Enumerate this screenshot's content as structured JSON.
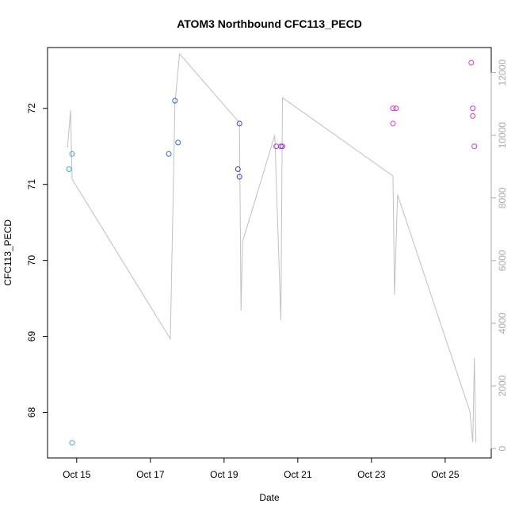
{
  "chart_data": {
    "type": "scatter",
    "title": "ATOM3 Northbound CFC113_PECD",
    "xlabel": "Date",
    "ylabel": "CFC113_PECD",
    "x_ticks": [
      "Oct 15",
      "Oct 17",
      "Oct 19",
      "Oct 21",
      "Oct 23",
      "Oct 25"
    ],
    "xlim": [
      "2016-10-14 05:00",
      "2016-10-26 06:00"
    ],
    "ylim": [
      67.4,
      72.8
    ],
    "y_ticks": [
      68,
      69,
      70,
      71,
      72
    ],
    "grid": false,
    "series": [
      {
        "color": "#3aa6e8",
        "points": [
          {
            "x": "2016-10-14 19:00",
            "y": 71.2
          },
          {
            "x": "2016-10-14 21:00",
            "y": 71.4
          },
          {
            "x": "2016-10-14 21:00",
            "y": 67.6
          }
        ]
      },
      {
        "color": "#2a6fe0",
        "points": [
          {
            "x": "2016-10-17 12:00",
            "y": 71.4
          },
          {
            "x": "2016-10-17 16:00",
            "y": 72.1
          },
          {
            "x": "2016-10-17 18:00",
            "y": 71.55
          }
        ]
      },
      {
        "color": "#4a35e8",
        "points": [
          {
            "x": "2016-10-19 09:00",
            "y": 71.2
          },
          {
            "x": "2016-10-19 10:00",
            "y": 71.1
          },
          {
            "x": "2016-10-19 10:00",
            "y": 71.8
          }
        ]
      },
      {
        "color": "#9b30e8",
        "points": [
          {
            "x": "2016-10-20 10:00",
            "y": 71.5
          },
          {
            "x": "2016-10-20 13:00",
            "y": 71.5
          },
          {
            "x": "2016-10-20 14:00",
            "y": 71.5
          }
        ]
      },
      {
        "color": "#e030e0",
        "points": [
          {
            "x": "2016-10-23 14:00",
            "y": 72.0
          },
          {
            "x": "2016-10-23 16:00",
            "y": 72.0
          },
          {
            "x": "2016-10-23 14:00",
            "y": 71.8
          },
          {
            "x": "2016-10-25 17:00",
            "y": 72.6
          },
          {
            "x": "2016-10-25 18:00",
            "y": 72.0
          },
          {
            "x": "2016-10-25 18:00",
            "y": 71.9
          },
          {
            "x": "2016-10-25 19:00",
            "y": 71.5
          }
        ]
      }
    ],
    "secondary_axis": {
      "side": "right",
      "ylim": [
        -300,
        12800
      ],
      "y_ticks": [
        0,
        2000,
        4000,
        6000,
        8000,
        10000,
        12000
      ],
      "line_color": "#c0c0c0",
      "line": [
        {
          "x": "2016-10-14 18:00",
          "y": 9600
        },
        {
          "x": "2016-10-14 20:00",
          "y": 10800
        },
        {
          "x": "2016-10-14 21:00",
          "y": 8600
        },
        {
          "x": "2016-10-17 13:00",
          "y": 3500
        },
        {
          "x": "2016-10-17 16:00",
          "y": 11000
        },
        {
          "x": "2016-10-17 19:00",
          "y": 12600
        },
        {
          "x": "2016-10-19 10:00",
          "y": 10400
        },
        {
          "x": "2016-10-19 11:00",
          "y": 4400
        },
        {
          "x": "2016-10-19 12:00",
          "y": 6600
        },
        {
          "x": "2016-10-20 09:00",
          "y": 10000
        },
        {
          "x": "2016-10-20 13:00",
          "y": 4100
        },
        {
          "x": "2016-10-20 14:00",
          "y": 11200
        },
        {
          "x": "2016-10-23 14:00",
          "y": 8700
        },
        {
          "x": "2016-10-23 15:00",
          "y": 4900
        },
        {
          "x": "2016-10-23 17:00",
          "y": 8100
        },
        {
          "x": "2016-10-25 16:00",
          "y": 1200
        },
        {
          "x": "2016-10-25 18:00",
          "y": 200
        },
        {
          "x": "2016-10-25 19:00",
          "y": 2900
        },
        {
          "x": "2016-10-25 20:00",
          "y": 200
        }
      ]
    }
  }
}
